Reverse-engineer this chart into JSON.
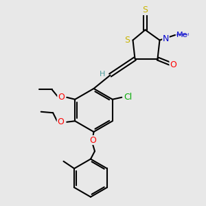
{
  "bg_color": "#e8e8e8",
  "atom_colors": {
    "S": "#c8b400",
    "N": "#0000cd",
    "O": "#ff0000",
    "Cl": "#00aa00",
    "C": "#000000",
    "H": "#4a9a9a"
  },
  "bond_color": "#000000",
  "bond_lw": 1.5,
  "font_size_atoms": 9,
  "font_size_small": 7.5
}
